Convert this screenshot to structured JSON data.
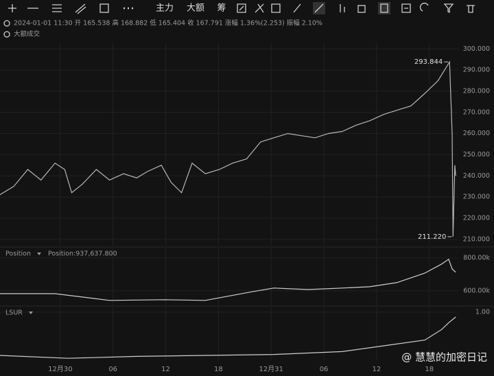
{
  "toolbar": [
    "主力",
    "大额",
    "筹"
  ],
  "header": {
    "info": "2024-01-01 11:30 开 165.538 高 168.882 低 165.404 收 167.791 涨幅 1.36%(2.253) 振幅 2.10%",
    "big_trades": "大额成交"
  },
  "watermark": "@ 慧慧的加密日记",
  "chart_data": [
    {
      "type": "line",
      "color": "#b8b8b8",
      "grid": true,
      "x": [
        -6.9,
        -5.3,
        -3.7,
        -2.2,
        -0.6,
        0.5,
        1.3,
        2.5,
        4.1,
        5.6,
        7.2,
        8.7,
        9.9,
        11.5,
        12.6,
        13.8,
        15.0,
        16.5,
        18.1,
        19.6,
        21.2,
        22.8,
        24.3,
        25.9,
        27.4,
        29.0,
        30.5,
        32.1,
        33.7,
        35.2,
        36.8,
        38.3,
        39.9,
        41.5,
        43.0,
        44.3,
        44.6,
        44.7,
        44.9,
        45.0
      ],
      "values": [
        231,
        235,
        243,
        238,
        246,
        243,
        232,
        236,
        243,
        238,
        241,
        239,
        242,
        245,
        237,
        232,
        246,
        241,
        243,
        246,
        248,
        256,
        258,
        260,
        259,
        258,
        260,
        261,
        264,
        266,
        269,
        271,
        273,
        279,
        285,
        293.844,
        260,
        211.22,
        245,
        240
      ],
      "annotations": [
        {
          "text": "293.844",
          "x": 44.3,
          "y": 293.844
        },
        {
          "text": "211.220",
          "x": 44.7,
          "y": 211.22
        }
      ],
      "xlim": [
        -6.86,
        45.3
      ],
      "ylim": [
        207,
        303
      ],
      "yticks": [
        {
          "value": 210,
          "label": "210.000"
        },
        {
          "value": 220,
          "label": "220.000"
        },
        {
          "value": 230,
          "label": "230.000"
        },
        {
          "value": 240,
          "label": "240.000"
        },
        {
          "value": 250,
          "label": "250.000"
        },
        {
          "value": 260,
          "label": "260.000"
        },
        {
          "value": 270,
          "label": "270.000"
        },
        {
          "value": 280,
          "label": "280.000"
        },
        {
          "value": 290,
          "label": "290.000"
        },
        {
          "value": 300,
          "label": "300.000"
        }
      ]
    },
    {
      "type": "line",
      "title": "Position",
      "subtitle": "Position:937,637.800",
      "color": "#d0d0d0",
      "grid": true,
      "x": [
        -6.9,
        -0.6,
        5.6,
        11.8,
        16.5,
        22.0,
        24.3,
        28.2,
        32.1,
        35.2,
        38.3,
        41.5,
        43.4,
        44.2,
        44.6,
        45.0
      ],
      "values": [
        583000,
        583000,
        542000,
        546000,
        542000,
        596000,
        617000,
        608000,
        617000,
        625000,
        650000,
        708000,
        763000,
        792000,
        733000,
        713000
      ],
      "xlim": [
        -6.86,
        45.3
      ],
      "ylim": [
        512000,
        858000
      ],
      "yticks": [
        {
          "value": 600000,
          "label": "600.00k"
        },
        {
          "value": 800000,
          "label": "800.00k"
        }
      ]
    },
    {
      "type": "line",
      "title": "LSUR",
      "color": "#d0d0d0",
      "grid": true,
      "x": [
        -6.9,
        0.9,
        8.7,
        16.5,
        24.3,
        32.1,
        36.8,
        41.5,
        43.4,
        44.2,
        45.0
      ],
      "values": [
        0.55,
        0.52,
        0.54,
        0.55,
        0.56,
        0.59,
        0.65,
        0.71,
        0.82,
        0.89,
        0.95
      ],
      "xlim": [
        -6.86,
        45.3
      ],
      "ylim": [
        0.5,
        1.05
      ],
      "yticks": [
        {
          "value": 1,
          "label": "1.00"
        }
      ],
      "xticks": [
        {
          "value": 0,
          "label": "12月30"
        },
        {
          "value": 6,
          "label": "06"
        },
        12,
        18,
        {
          "value": 24,
          "label": "12月31"
        },
        {
          "value": 30,
          "label": "06"
        },
        {
          "value": 36,
          "label": "12"
        },
        {
          "value": 42,
          "label": "18"
        }
      ]
    }
  ]
}
